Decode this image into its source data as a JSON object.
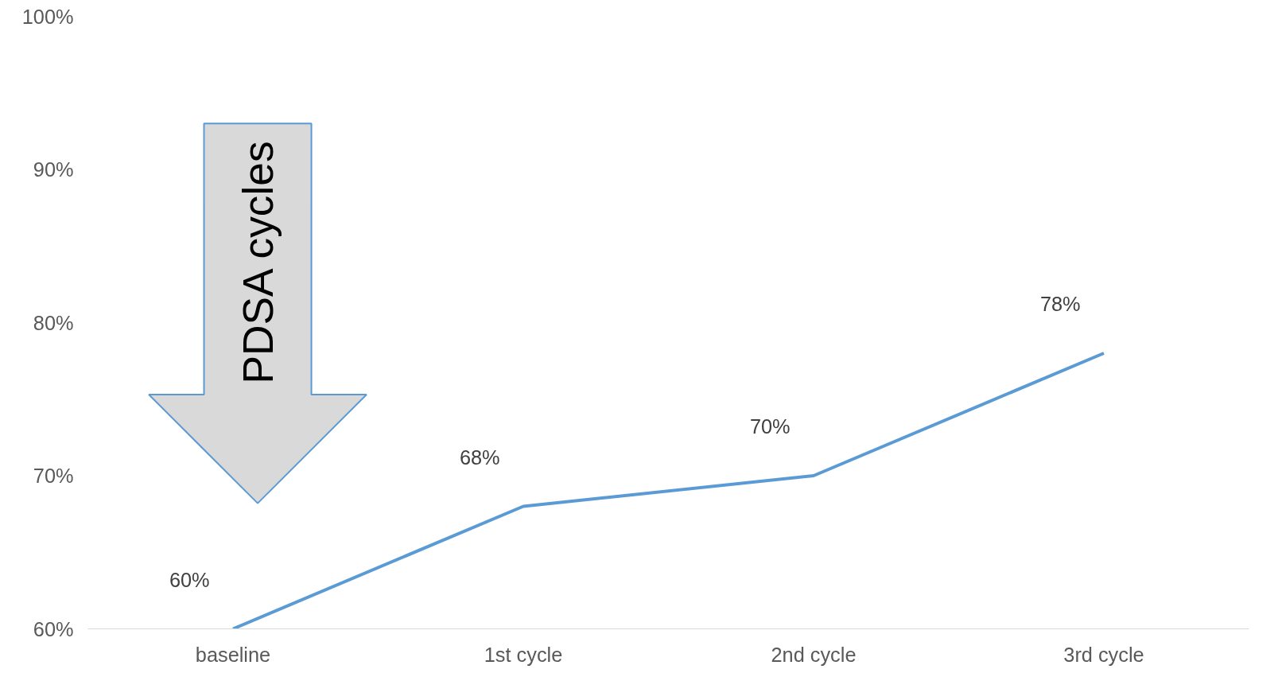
{
  "chart_data": {
    "type": "line",
    "categories": [
      "baseline",
      "1st cycle",
      "2nd cycle",
      "3rd cycle"
    ],
    "series": [
      {
        "color": "#5b9bd5",
        "values": [
          60,
          68,
          70,
          78
        ],
        "value_labels": [
          "60%",
          "68%",
          "70%",
          "78%"
        ]
      }
    ],
    "ylim": [
      60,
      100
    ],
    "yticks": [
      {
        "value": 60,
        "label": "60%"
      },
      {
        "value": 70,
        "label": "70%"
      },
      {
        "value": 80,
        "label": "80%"
      },
      {
        "value": 90,
        "label": "90%"
      },
      {
        "value": 100,
        "label": "100%"
      }
    ],
    "annotations": [
      "PDSA cycles"
    ],
    "grid": false
  }
}
